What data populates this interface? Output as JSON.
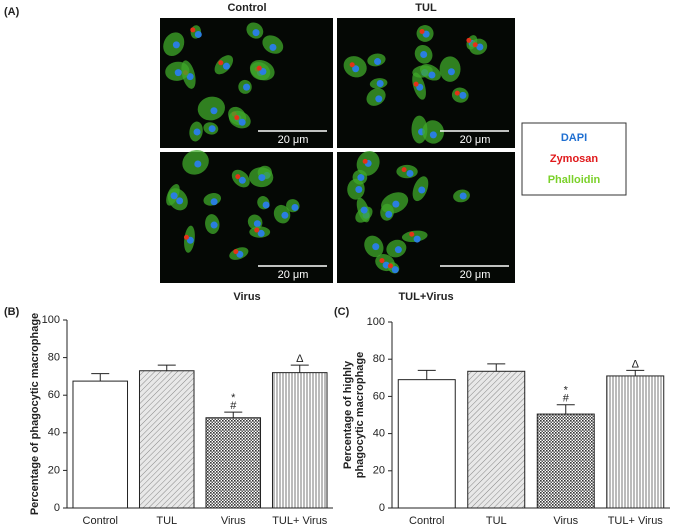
{
  "figure": {
    "panel_labels": [
      "(A)",
      "(B)",
      "(C)"
    ],
    "image_labels": [
      "Control",
      "TUL",
      "Virus",
      "TUL+Virus"
    ],
    "scale_bar": "20 μm",
    "legend": [
      {
        "label": "DAPI",
        "color": "#1f6fd1"
      },
      {
        "label": "Zymosan",
        "color": "#e0191b"
      },
      {
        "label": "Phalloidin",
        "color": "#7bd12a"
      }
    ]
  },
  "chart_data": [
    {
      "type": "bar",
      "ylabel": [
        "Percentage of phagocytic macrophage"
      ],
      "categories": [
        "Control",
        "TUL",
        "Virus",
        "TUL+ Virus"
      ],
      "values": [
        67.5,
        73,
        48,
        72
      ],
      "errors": [
        4,
        3,
        3,
        4
      ],
      "fills": [
        "plain",
        "diagonal",
        "checker",
        "vertical"
      ],
      "annotations": [
        null,
        null,
        [
          "*",
          "#"
        ],
        [
          "Δ"
        ]
      ],
      "ylim": [
        0,
        100
      ],
      "yticks": [
        0,
        20,
        40,
        60,
        80,
        100
      ]
    },
    {
      "type": "bar",
      "ylabel": [
        "Percentage of highly",
        "phagocytic macrophage"
      ],
      "categories": [
        "Control",
        "TUL",
        "Virus",
        "TUL+ Virus"
      ],
      "values": [
        69,
        73.5,
        50.5,
        71
      ],
      "errors": [
        5,
        4,
        5,
        3
      ],
      "fills": [
        "plain",
        "diagonal",
        "checker",
        "vertical"
      ],
      "annotations": [
        null,
        null,
        [
          "*",
          "#"
        ],
        [
          "Δ"
        ]
      ],
      "ylim": [
        0,
        100
      ],
      "yticks": [
        0,
        20,
        40,
        60,
        80,
        100
      ]
    }
  ]
}
